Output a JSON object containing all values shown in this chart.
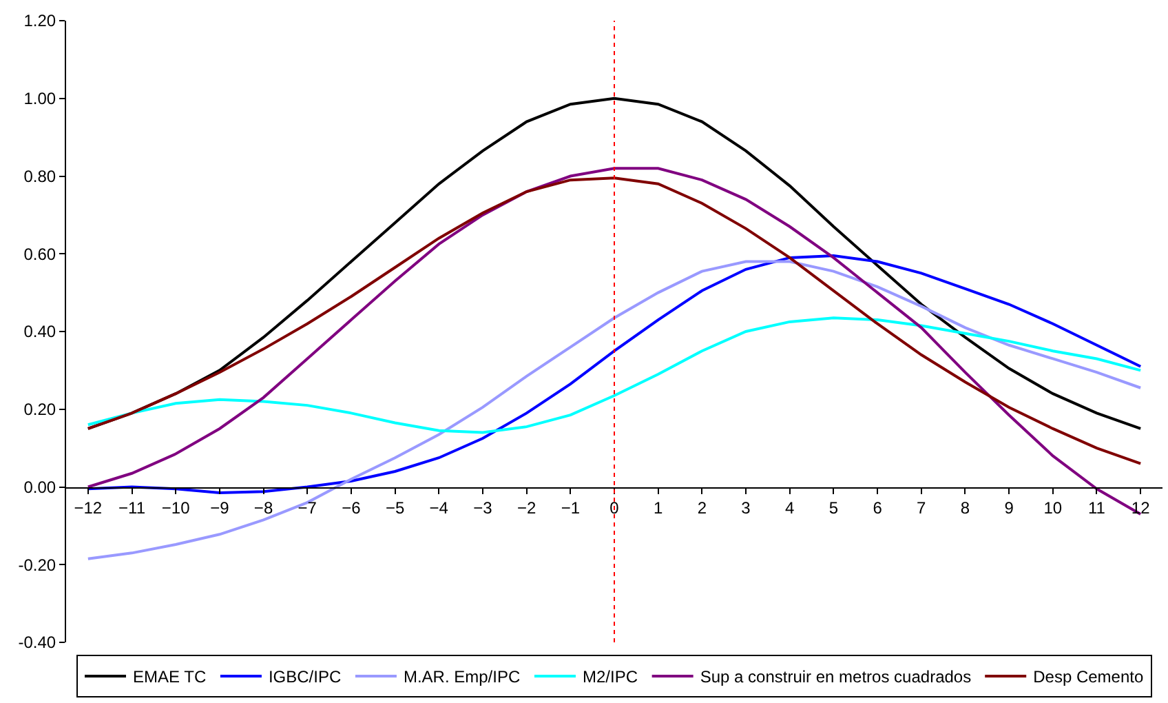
{
  "chart_data": {
    "type": "line",
    "x": [
      -12,
      -11,
      -10,
      -9,
      -8,
      -7,
      -6,
      -5,
      -4,
      -3,
      -2,
      -1,
      0,
      1,
      2,
      3,
      4,
      5,
      6,
      7,
      8,
      9,
      10,
      11,
      12
    ],
    "xlim": [
      -12.5,
      12.5
    ],
    "xticks": [
      -12,
      -11,
      -10,
      -9,
      -8,
      -7,
      -6,
      -5,
      -4,
      -3,
      -2,
      -1,
      0,
      1,
      2,
      3,
      4,
      5,
      6,
      7,
      8,
      9,
      10,
      11,
      12
    ],
    "ylim": [
      -0.4,
      1.2
    ],
    "yticks": [
      {
        "value": -0.4,
        "label": "-0.40"
      },
      {
        "value": -0.2,
        "label": "-0.20"
      },
      {
        "value": 0,
        "label": "0.00"
      },
      {
        "value": 0.2,
        "label": "0.20"
      },
      {
        "value": 0.4,
        "label": "0.40"
      },
      {
        "value": 0.6,
        "label": "0.60"
      },
      {
        "value": 0.8,
        "label": "0.80"
      },
      {
        "value": 1.0,
        "label": "1.00"
      },
      {
        "value": 1.2,
        "label": "1.20"
      }
    ],
    "series": [
      {
        "name": "EMAE TC",
        "color": "#000000",
        "values": [
          0.15,
          0.19,
          0.24,
          0.3,
          0.385,
          0.48,
          0.58,
          0.68,
          0.78,
          0.865,
          0.94,
          0.985,
          1.0,
          0.985,
          0.94,
          0.865,
          0.775,
          0.67,
          0.57,
          0.47,
          0.385,
          0.305,
          0.24,
          0.19,
          0.15
        ]
      },
      {
        "name": "IGBC/IPC",
        "color": "#0000ff",
        "values": [
          -0.005,
          0.0,
          -0.005,
          -0.015,
          -0.012,
          0.0,
          0.015,
          0.04,
          0.075,
          0.125,
          0.19,
          0.265,
          0.35,
          0.43,
          0.505,
          0.56,
          0.59,
          0.595,
          0.58,
          0.55,
          0.51,
          0.47,
          0.42,
          0.365,
          0.31
        ]
      },
      {
        "name": "M.AR. Emp/IPC",
        "color": "#9999ff",
        "values": [
          -0.185,
          -0.17,
          -0.148,
          -0.122,
          -0.085,
          -0.04,
          0.02,
          0.075,
          0.135,
          0.205,
          0.285,
          0.36,
          0.435,
          0.5,
          0.555,
          0.58,
          0.58,
          0.555,
          0.515,
          0.465,
          0.41,
          0.365,
          0.33,
          0.295,
          0.255
        ]
      },
      {
        "name": "M2/IPC",
        "color": "#00ffff",
        "values": [
          0.16,
          0.19,
          0.215,
          0.225,
          0.22,
          0.21,
          0.19,
          0.165,
          0.145,
          0.14,
          0.155,
          0.185,
          0.235,
          0.29,
          0.35,
          0.4,
          0.425,
          0.435,
          0.43,
          0.415,
          0.395,
          0.375,
          0.35,
          0.33,
          0.3
        ]
      },
      {
        "name": "Sup a construir en metros cuadrados",
        "color": "#800080",
        "values": [
          0.0,
          0.035,
          0.085,
          0.15,
          0.23,
          0.33,
          0.43,
          0.53,
          0.625,
          0.7,
          0.76,
          0.8,
          0.82,
          0.82,
          0.79,
          0.74,
          0.67,
          0.59,
          0.5,
          0.41,
          0.295,
          0.185,
          0.08,
          -0.005,
          -0.07
        ]
      },
      {
        "name": "Desp Cemento",
        "color": "#800000",
        "values": [
          0.15,
          0.19,
          0.24,
          0.295,
          0.355,
          0.42,
          0.49,
          0.565,
          0.64,
          0.705,
          0.76,
          0.79,
          0.795,
          0.78,
          0.73,
          0.665,
          0.59,
          0.505,
          0.42,
          0.34,
          0.27,
          0.205,
          0.15,
          0.1,
          0.06
        ]
      }
    ],
    "ref_lines": [
      {
        "axis": "x",
        "value": 0,
        "color": "#ff0000",
        "line_style": "dotted"
      }
    ],
    "legend": "bottom",
    "marker": "none",
    "line_style": "solid"
  }
}
